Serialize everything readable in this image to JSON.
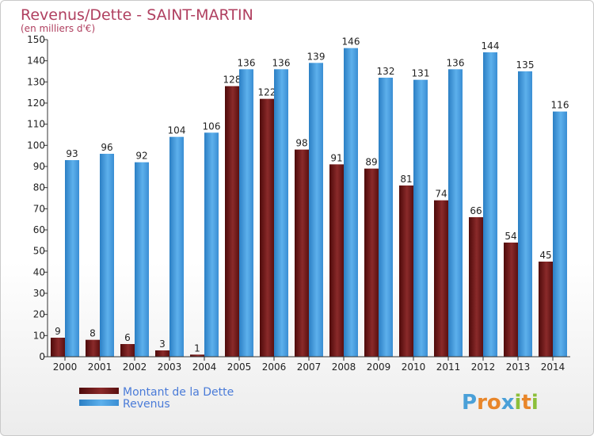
{
  "chart_data": {
    "type": "bar",
    "title": "Revenus/Dette - SAINT-MARTIN",
    "subtitle": "(en milliers d'€)",
    "categories": [
      "2000",
      "2001",
      "2002",
      "2003",
      "2004",
      "2005",
      "2006",
      "2007",
      "2008",
      "2009",
      "2010",
      "2011",
      "2012",
      "2013",
      "2014"
    ],
    "series": [
      {
        "name": "Montant de la Dette",
        "color": "#7a1a1a",
        "values": [
          9,
          8,
          6,
          3,
          1,
          128,
          122,
          98,
          91,
          89,
          81,
          74,
          66,
          54,
          45
        ]
      },
      {
        "name": "Revenus",
        "color": "#3a94d8",
        "values": [
          93,
          96,
          92,
          104,
          106,
          136,
          136,
          139,
          146,
          132,
          131,
          136,
          144,
          135,
          116
        ]
      }
    ],
    "ylim": [
      0,
      150
    ],
    "yticks": [
      0,
      10,
      20,
      30,
      40,
      50,
      60,
      70,
      80,
      90,
      100,
      110,
      120,
      130,
      140,
      150
    ],
    "grid": false,
    "legend_position": "bottom-left"
  },
  "logo": {
    "text": "Proxiti",
    "letters": [
      {
        "char": "P",
        "color": "#4aa0d8"
      },
      {
        "char": "r",
        "color": "#e8862a"
      },
      {
        "char": "o",
        "color": "#e8862a"
      },
      {
        "char": "x",
        "color": "#4aa0d8"
      },
      {
        "char": "i",
        "color": "#8cbf3a"
      },
      {
        "char": "t",
        "color": "#e8862a"
      },
      {
        "char": "i",
        "color": "#8cbf3a"
      }
    ]
  }
}
